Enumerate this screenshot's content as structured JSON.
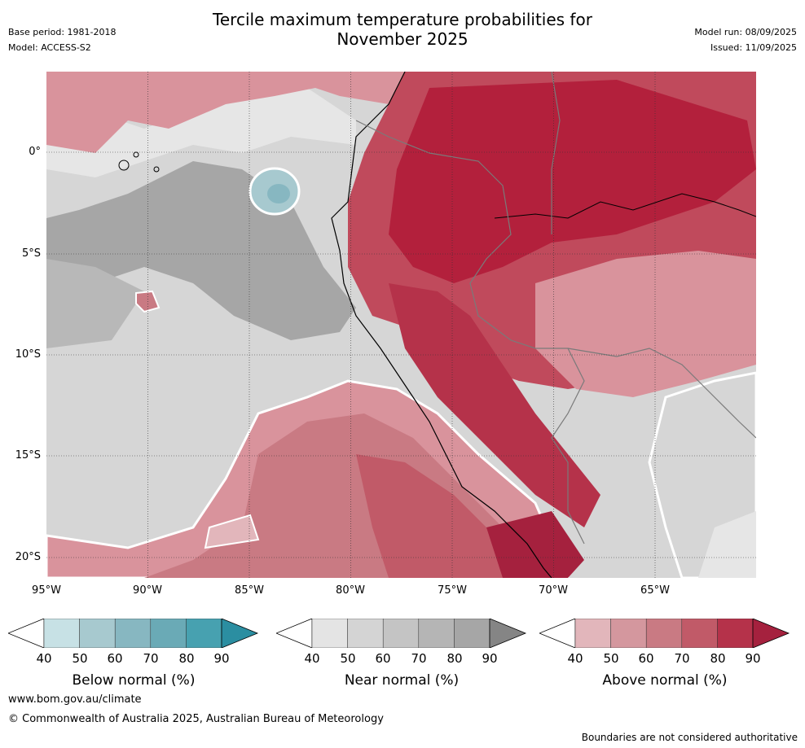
{
  "header": {
    "title_line1": "Tercile maximum temperature probabilities for",
    "title_line2": "November 2025",
    "base_period": "Base period: 1981-2018",
    "model": "Model: ACCESS-S2",
    "model_run": "Model run: 08/09/2025",
    "issued": "Issued: 11/09/2025"
  },
  "map": {
    "lat_labels": [
      "0°",
      "5°S",
      "10°S",
      "15°S",
      "20°S"
    ],
    "lon_labels": [
      "95°W",
      "90°W",
      "85°W",
      "80°W",
      "75°W",
      "70°W",
      "65°W"
    ],
    "colors": {
      "ocean_near": "#d6d6d6",
      "near_darker": "#a6a6a6",
      "above_strong": "#b3203c",
      "above_mid": "#c04a5c",
      "above_light": "#d9939c",
      "below": "#a7c9cf"
    }
  },
  "legend": {
    "ticks": [
      "40",
      "50",
      "60",
      "70",
      "80",
      "90"
    ],
    "below": {
      "title": "Below normal (%)",
      "colors": [
        "#c7e1e5",
        "#a7c9cf",
        "#87b7c1",
        "#6aaab6",
        "#47a1b0",
        "#2b8ea1"
      ]
    },
    "near": {
      "title": "Near normal (%)",
      "colors": [
        "#e4e4e4",
        "#d4d4d4",
        "#c4c4c4",
        "#b5b5b5",
        "#a6a6a6",
        "#858585"
      ]
    },
    "above": {
      "title": "Above normal (%)",
      "colors": [
        "#e2b6bb",
        "#d4979e",
        "#c97a83",
        "#c15a68",
        "#b5324a",
        "#a5213e"
      ]
    }
  },
  "footer": {
    "website": "www.bom.gov.au/climate",
    "copyright": "© Commonwealth of Australia 2025, Australian Bureau of Meteorology",
    "disclaimer": "Boundaries are not considered authoritative"
  }
}
